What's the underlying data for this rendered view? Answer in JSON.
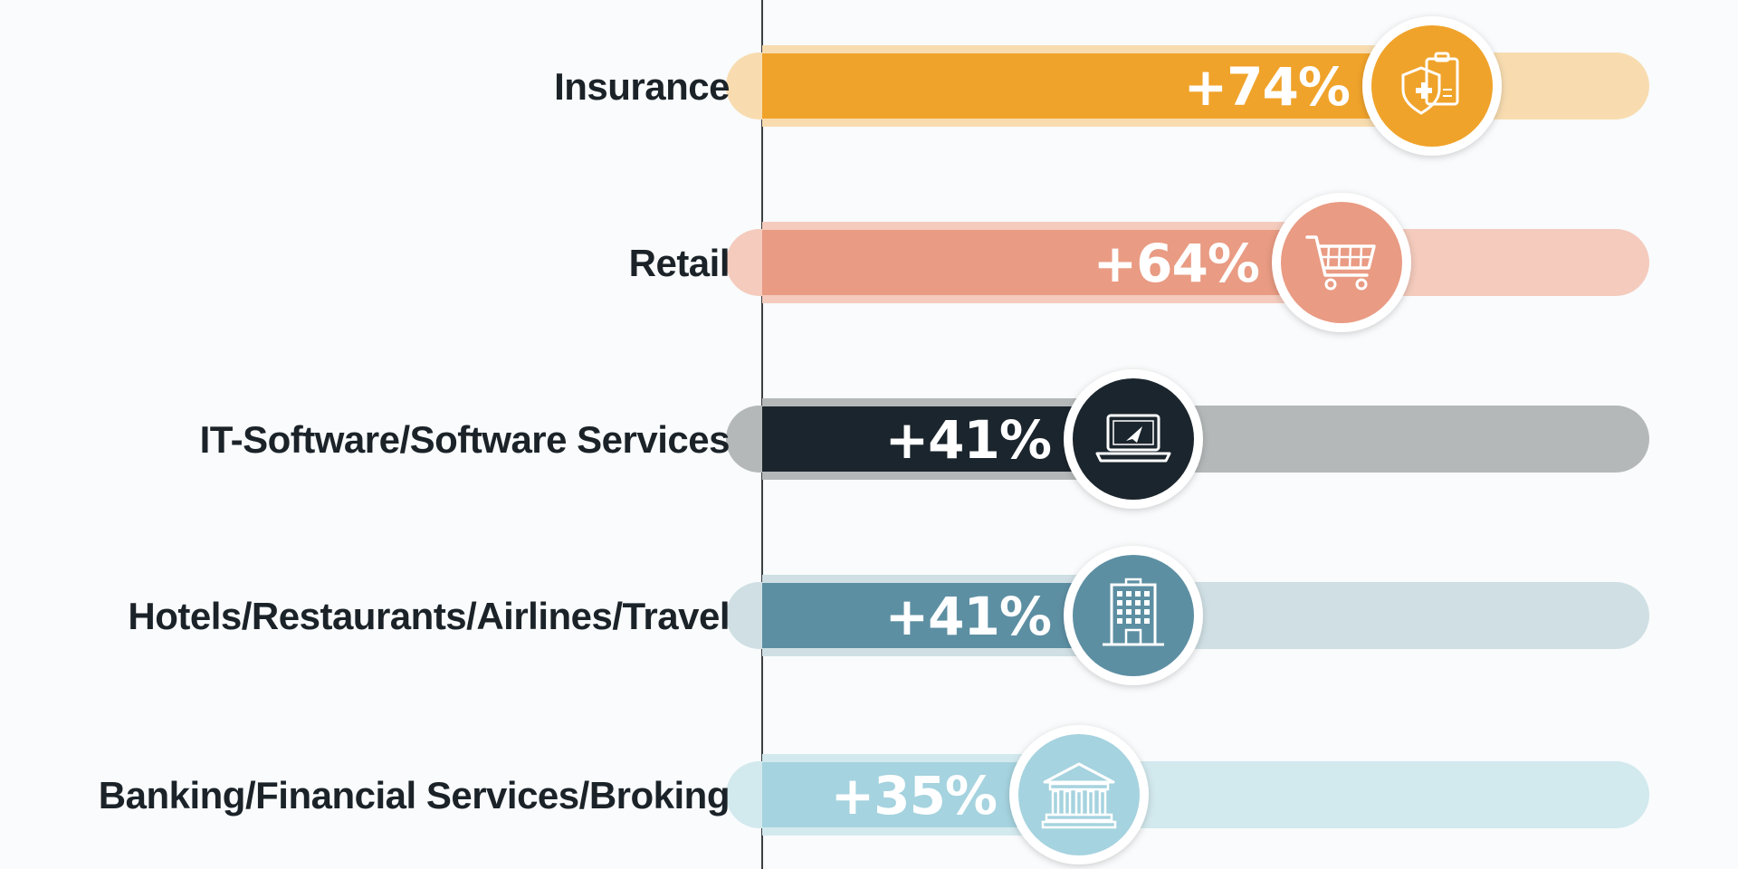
{
  "chart_data": {
    "type": "bar",
    "orientation": "horizontal",
    "title": "",
    "xlabel": "",
    "ylabel": "",
    "xlim": [
      0,
      100
    ],
    "grid": false,
    "categories": [
      "Insurance",
      "Retail",
      "IT-Software/Software Services",
      "Hotels/Restaurants/Airlines/Travel",
      "Banking/Financial Services/Broking"
    ],
    "values": [
      74,
      64,
      41,
      41,
      35
    ],
    "value_labels": [
      "+74%",
      "+64%",
      "+41%",
      "+41%",
      "+35%"
    ],
    "icons": [
      "shield-clipboard-icon",
      "shopping-cart-icon",
      "laptop-rocket-icon",
      "hotel-building-icon",
      "bank-building-icon"
    ],
    "bar_colors": [
      "#f0a32a",
      "#e99b83",
      "#1b252d",
      "#5d8fa3",
      "#a5d3df"
    ],
    "track_colors": [
      "#f8dcb0",
      "#f4cbbd",
      "#b4b8b9",
      "#cfdfe4",
      "#d2e9ee"
    ]
  }
}
